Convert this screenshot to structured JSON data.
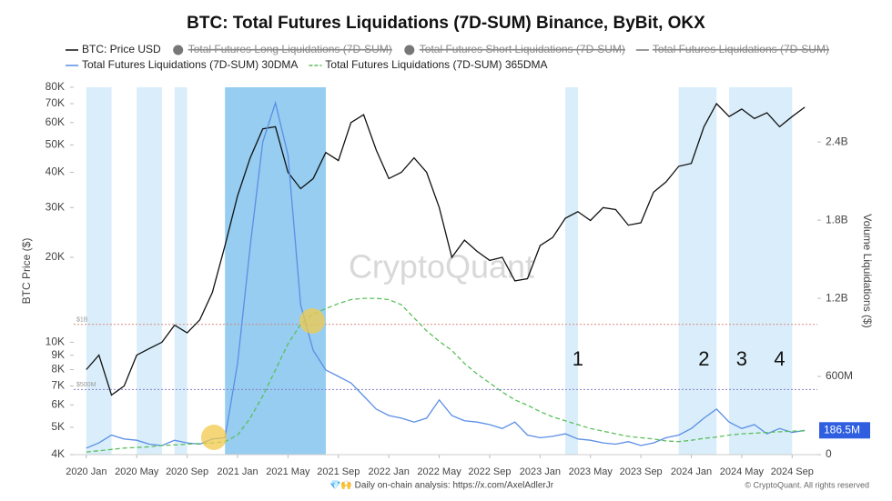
{
  "chart_data": {
    "type": "line",
    "title": "BTC: Total Futures Liquidations (7D-SUM) Binance, ByBit, OKX",
    "y_label": "BTC Price ($)",
    "y2_label": "Volume Liquidations ($)",
    "watermark": "CryptoQuant",
    "footer_left": "💎🙌 Daily on-chain analysis: https://x.com/AxelAdlerJr",
    "footer_right": "© CryptoQuant. All rights reserved",
    "log_y": true,
    "xlim": [
      "2019-12",
      "2024-11"
    ],
    "xticks": [
      {
        "value": "2020-01",
        "label": "2020 Jan"
      },
      {
        "value": "2020-05",
        "label": "2020 May"
      },
      {
        "value": "2020-09",
        "label": "2020 Sep"
      },
      {
        "value": "2021-01",
        "label": "2021 Jan"
      },
      {
        "value": "2021-05",
        "label": "2021 May"
      },
      {
        "value": "2021-09",
        "label": "2021 Sep"
      },
      {
        "value": "2022-01",
        "label": "2022 Jan"
      },
      {
        "value": "2022-05",
        "label": "2022 May"
      },
      {
        "value": "2022-09",
        "label": "2022 Sep"
      },
      {
        "value": "2023-01",
        "label": "2023 Jan"
      },
      {
        "value": "2023-05",
        "label": "2023 May"
      },
      {
        "value": "2023-09",
        "label": "2023 Sep"
      },
      {
        "value": "2024-01",
        "label": "2024 Jan"
      },
      {
        "value": "2024-05",
        "label": "2024 May"
      },
      {
        "value": "2024-09",
        "label": "2024 Sep"
      }
    ],
    "ylim": [
      4000,
      80000
    ],
    "yticks": [
      {
        "value": 4000,
        "label": "4K"
      },
      {
        "value": 5000,
        "label": "5K"
      },
      {
        "value": 6000,
        "label": "6K"
      },
      {
        "value": 7000,
        "label": "7K"
      },
      {
        "value": 8000,
        "label": "8K"
      },
      {
        "value": 9000,
        "label": "9K"
      },
      {
        "value": 10000,
        "label": "10K"
      },
      {
        "value": 20000,
        "label": "20K"
      },
      {
        "value": 30000,
        "label": "30K"
      },
      {
        "value": 40000,
        "label": "40K"
      },
      {
        "value": 50000,
        "label": "50K"
      },
      {
        "value": 60000,
        "label": "60K"
      },
      {
        "value": 70000,
        "label": "70K"
      },
      {
        "value": 80000,
        "label": "80K"
      }
    ],
    "y2lim": [
      0,
      2820
    ],
    "y2ticks": [
      0,
      {
        "value": 600,
        "label": "600M"
      },
      {
        "value": 1200,
        "label": "1.2B"
      },
      {
        "value": 1800,
        "label": "1.8B"
      },
      {
        "value": 2400,
        "label": "2.4B"
      }
    ],
    "reference_lines": [
      {
        "value": 1000,
        "label": "$1B"
      },
      {
        "value": 500,
        "label": "$500M"
      }
    ],
    "highlight_periods": [
      {
        "start": "2020-01",
        "end": "2020-03"
      },
      {
        "start": "2020-05",
        "end": "2020-07"
      },
      {
        "start": "2020-08",
        "end": "2020-09"
      },
      {
        "start": "2020-12",
        "end": "2021-08"
      },
      {
        "start": "2023-03",
        "end": "2023-04"
      },
      {
        "start": "2023-12",
        "end": "2024-03"
      },
      {
        "start": "2024-04",
        "end": "2024-07"
      },
      {
        "start": "2024-07",
        "end": "2024-09"
      }
    ],
    "annotations": [
      {
        "x": "2023-04",
        "text": "1"
      },
      {
        "x": "2024-02",
        "text": "2"
      },
      {
        "x": "2024-05",
        "text": "3"
      },
      {
        "x": "2024-08",
        "text": "4"
      }
    ],
    "x": [
      "2020-01",
      "2020-02",
      "2020-03",
      "2020-04",
      "2020-05",
      "2020-06",
      "2020-07",
      "2020-08",
      "2020-09",
      "2020-10",
      "2020-11",
      "2020-12",
      "2021-01",
      "2021-02",
      "2021-03",
      "2021-04",
      "2021-05",
      "2021-06",
      "2021-07",
      "2021-08",
      "2021-09",
      "2021-10",
      "2021-11",
      "2021-12",
      "2022-01",
      "2022-02",
      "2022-03",
      "2022-04",
      "2022-05",
      "2022-06",
      "2022-07",
      "2022-08",
      "2022-09",
      "2022-10",
      "2022-11",
      "2022-12",
      "2023-01",
      "2023-02",
      "2023-03",
      "2023-04",
      "2023-05",
      "2023-06",
      "2023-07",
      "2023-08",
      "2023-09",
      "2023-10",
      "2023-11",
      "2023-12",
      "2024-01",
      "2024-02",
      "2024-03",
      "2024-04",
      "2024-05",
      "2024-06",
      "2024-07",
      "2024-08",
      "2024-09",
      "2024-10"
    ],
    "series": [
      {
        "name": "BTC: Price USD",
        "color": "#111111",
        "axis": "y",
        "values": [
          8000,
          9000,
          6500,
          7000,
          9000,
          9500,
          10000,
          11500,
          10800,
          12000,
          15000,
          22000,
          33000,
          45000,
          57000,
          58000,
          40000,
          35000,
          38000,
          47000,
          44000,
          60000,
          64000,
          48000,
          38000,
          40000,
          45000,
          40000,
          30000,
          20000,
          23000,
          21000,
          19500,
          20000,
          16500,
          16800,
          22000,
          23500,
          27500,
          29000,
          27000,
          30000,
          29500,
          26000,
          26500,
          34000,
          37000,
          42000,
          43000,
          58000,
          70000,
          63000,
          67000,
          62000,
          65000,
          58000,
          63000,
          68000
        ]
      },
      {
        "name": "Total Futures Liquidations (7D-SUM) 30DMA",
        "color": "#5b8ee6",
        "axis": "y2",
        "values": [
          50,
          90,
          150,
          120,
          110,
          80,
          70,
          110,
          90,
          80,
          120,
          130,
          700,
          1600,
          2400,
          2700,
          2300,
          1150,
          800,
          650,
          600,
          550,
          450,
          350,
          300,
          280,
          250,
          280,
          420,
          300,
          260,
          250,
          230,
          200,
          250,
          150,
          130,
          140,
          160,
          120,
          110,
          90,
          80,
          100,
          70,
          90,
          130,
          150,
          200,
          280,
          350,
          250,
          200,
          230,
          160,
          200,
          170,
          186.5
        ],
        "value_labels": [
          null,
          null,
          null,
          null,
          null,
          null,
          null,
          null,
          null,
          null,
          null,
          null,
          null,
          null,
          null,
          null,
          null,
          null,
          null,
          null,
          null,
          null,
          null,
          null,
          null,
          null,
          null,
          null,
          null,
          null,
          null,
          null,
          null,
          null,
          null,
          null,
          null,
          null,
          null,
          null,
          null,
          null,
          null,
          null,
          null,
          null,
          null,
          null,
          null,
          null,
          null,
          null,
          null,
          null,
          null,
          null,
          null,
          "186.5M"
        ]
      },
      {
        "name": "Total Futures Liquidations (7D-SUM) 365DMA",
        "color": "#5cbf5c",
        "axis": "y2",
        "dashed": true,
        "values": [
          20,
          30,
          40,
          50,
          55,
          60,
          70,
          75,
          80,
          85,
          90,
          100,
          150,
          280,
          450,
          650,
          850,
          1000,
          1080,
          1120,
          1160,
          1190,
          1200,
          1200,
          1190,
          1150,
          1050,
          950,
          870,
          800,
          700,
          620,
          550,
          480,
          420,
          380,
          330,
          290,
          260,
          230,
          200,
          180,
          160,
          140,
          130,
          120,
          105,
          100,
          110,
          125,
          135,
          150,
          160,
          165,
          170,
          175,
          180,
          182
        ]
      }
    ],
    "hidden_series": [
      {
        "name": "Total Futures Long Liquidations (7D-SUM)",
        "color": "#777777",
        "marker": "circle"
      },
      {
        "name": "Total Futures Short Liquidations (7D-SUM)",
        "color": "#777777",
        "marker": "circle"
      },
      {
        "name": "Total Futures Liquidations (7D-SUM)",
        "color": "#777777",
        "marker": "line"
      }
    ]
  }
}
